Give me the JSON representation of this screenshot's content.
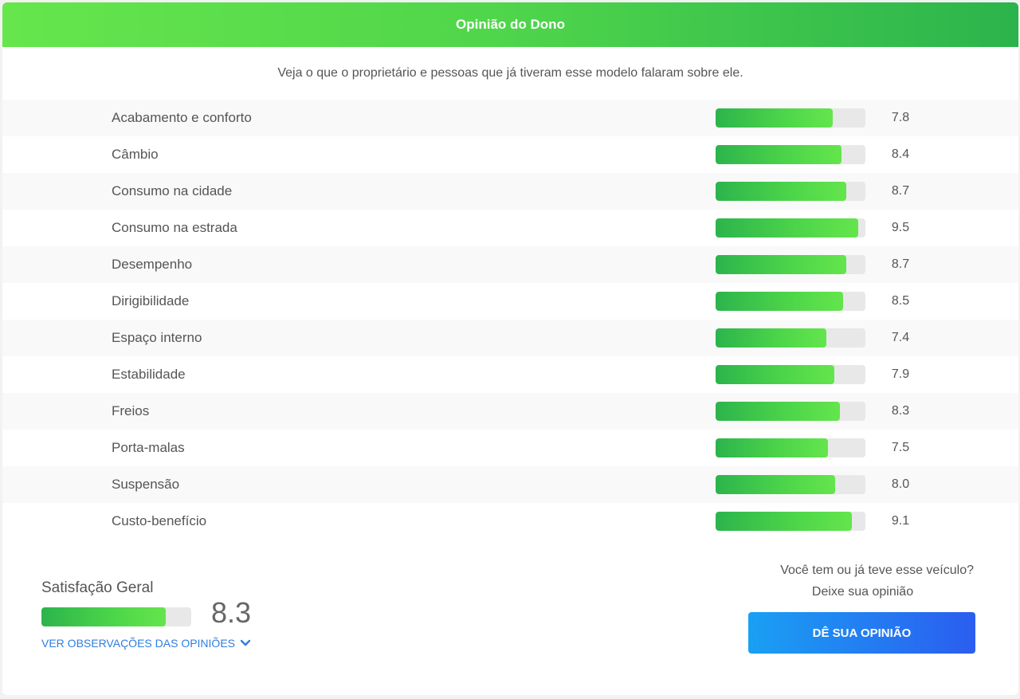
{
  "header": {
    "title": "Opinião do Dono"
  },
  "subtitle": "Veja o que o proprietário e pessoas que já tiveram esse modelo falaram sobre ele.",
  "ratings": [
    {
      "label": "Acabamento e conforto",
      "value": "7.8",
      "fraction": 0.78
    },
    {
      "label": "Câmbio",
      "value": "8.4",
      "fraction": 0.84
    },
    {
      "label": "Consumo na cidade",
      "value": "8.7",
      "fraction": 0.87
    },
    {
      "label": "Consumo na estrada",
      "value": "9.5",
      "fraction": 0.95
    },
    {
      "label": "Desempenho",
      "value": "8.7",
      "fraction": 0.87
    },
    {
      "label": "Dirigibilidade",
      "value": "8.5",
      "fraction": 0.85
    },
    {
      "label": "Espaço interno",
      "value": "7.4",
      "fraction": 0.74
    },
    {
      "label": "Estabilidade",
      "value": "7.9",
      "fraction": 0.79
    },
    {
      "label": "Freios",
      "value": "8.3",
      "fraction": 0.83
    },
    {
      "label": "Porta-malas",
      "value": "7.5",
      "fraction": 0.75
    },
    {
      "label": "Suspensão",
      "value": "8.0",
      "fraction": 0.8
    },
    {
      "label": "Custo-benefício",
      "value": "9.1",
      "fraction": 0.91
    }
  ],
  "overall": {
    "title": "Satisfação Geral",
    "value": "8.3",
    "fraction": 0.83,
    "link_label": "VER OBSERVAÇÕES DAS OPINIÕES",
    "link_icon": "chevron-down-icon"
  },
  "cta": {
    "question": "Você tem ou já teve esse veículo?",
    "prompt": "Deixe sua opinião",
    "button_label": "DÊ SUA OPINIÃO"
  },
  "colors": {
    "header_gradient": [
      "#66e64c",
      "#2cb44c"
    ],
    "bar_gradient": [
      "#2cb44c",
      "#64e54c"
    ],
    "button_gradient": [
      "#1aa0f3",
      "#2b5df0"
    ],
    "link": "#2f7de1"
  }
}
